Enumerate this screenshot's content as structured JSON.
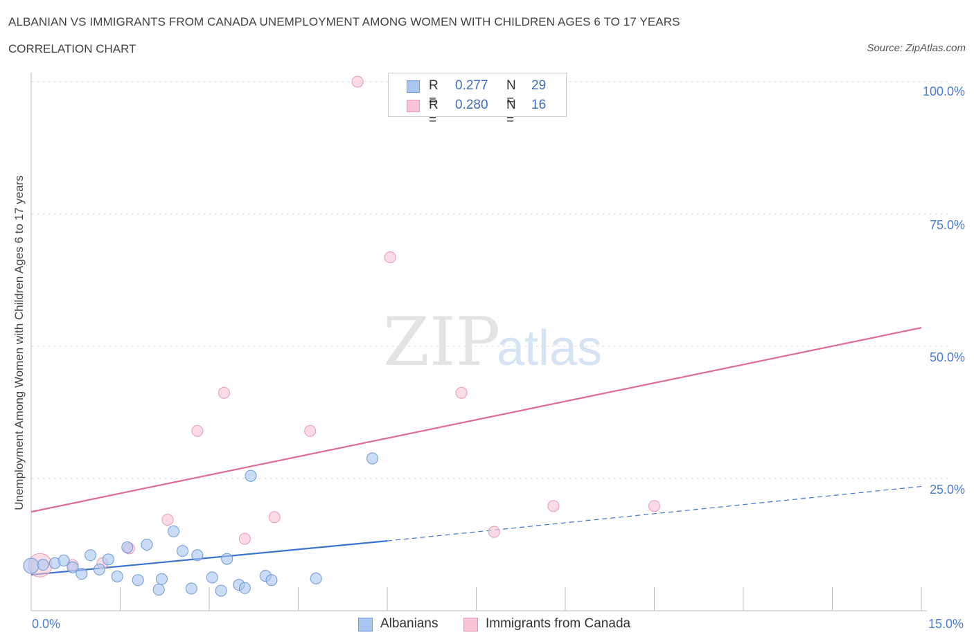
{
  "title": "ALBANIAN VS IMMIGRANTS FROM CANADA UNEMPLOYMENT AMONG WOMEN WITH CHILDREN AGES 6 TO 17 YEARS",
  "subtitle": "CORRELATION CHART",
  "source": "Source: ZipAtlas.com",
  "watermark": {
    "zip": "ZIP",
    "atlas": "atlas"
  },
  "legend_stats": [
    {
      "r_label": "R =",
      "r_value": "0.277",
      "n_label": "N =",
      "n_value": "29",
      "color": "#a9c6f0",
      "border": "#6d9de0"
    },
    {
      "r_label": "R =",
      "r_value": "0.280",
      "n_label": "N =",
      "n_value": "16",
      "color": "#f9c3d3",
      "border": "#e996b0"
    }
  ],
  "colors": {
    "albanians_fill": "#a9c6f0",
    "albanians_stroke": "#6b98d8",
    "albanians_line": "#3a74cc",
    "canada_fill": "#f9c3d3",
    "canada_stroke": "#e79ab3",
    "canada_line": "#e06b94",
    "tick_text": "#4a7ccf",
    "grid": "#dcdcdc"
  },
  "chart_data": {
    "type": "scatter",
    "title": "ALBANIAN VS IMMIGRANTS FROM CANADA UNEMPLOYMENT AMONG WOMEN WITH CHILDREN AGES 6 TO 17 YEARS",
    "xlabel": "",
    "ylabel": "Unemployment Among Women with Children Ages 6 to 17 years",
    "xlim": [
      0,
      15
    ],
    "ylim": [
      0,
      100
    ],
    "x_tick_labels": [
      "0.0%",
      "15.0%"
    ],
    "y_ticks": [
      25,
      50,
      75,
      100
    ],
    "y_tick_labels": [
      "25.0%",
      "50.0%",
      "75.0%",
      "100.0%"
    ],
    "grid": "horizontal dashed",
    "legend_position": "bottom",
    "series": [
      {
        "name": "Albanians",
        "points": [
          {
            "x": 0.0,
            "y": 8.5
          },
          {
            "x": 0.2,
            "y": 8.7
          },
          {
            "x": 0.4,
            "y": 9.0
          },
          {
            "x": 0.55,
            "y": 9.5
          },
          {
            "x": 0.7,
            "y": 8.2
          },
          {
            "x": 0.85,
            "y": 7.0
          },
          {
            "x": 1.0,
            "y": 10.5
          },
          {
            "x": 1.15,
            "y": 7.8
          },
          {
            "x": 1.3,
            "y": 9.7
          },
          {
            "x": 1.45,
            "y": 6.5
          },
          {
            "x": 1.62,
            "y": 12.0
          },
          {
            "x": 1.8,
            "y": 5.8
          },
          {
            "x": 1.95,
            "y": 12.5
          },
          {
            "x": 2.15,
            "y": 4.0
          },
          {
            "x": 2.2,
            "y": 6.0
          },
          {
            "x": 2.4,
            "y": 15.0
          },
          {
            "x": 2.55,
            "y": 11.3
          },
          {
            "x": 2.7,
            "y": 4.2
          },
          {
            "x": 2.8,
            "y": 10.5
          },
          {
            "x": 3.05,
            "y": 6.3
          },
          {
            "x": 3.2,
            "y": 3.8
          },
          {
            "x": 3.3,
            "y": 9.8
          },
          {
            "x": 3.5,
            "y": 4.9
          },
          {
            "x": 3.6,
            "y": 4.3
          },
          {
            "x": 3.7,
            "y": 25.5
          },
          {
            "x": 3.95,
            "y": 6.6
          },
          {
            "x": 4.05,
            "y": 5.8
          },
          {
            "x": 4.8,
            "y": 6.1
          },
          {
            "x": 5.75,
            "y": 28.8
          }
        ],
        "trend": {
          "x": [
            0.0,
            6.0
          ],
          "y": [
            6.8,
            13.2
          ]
        },
        "trend_extension": {
          "x": [
            6.0,
            15.0
          ],
          "y": [
            13.2,
            23.5
          ]
        }
      },
      {
        "name": "Immigrants from Canada",
        "points": [
          {
            "x": 0.15,
            "y": 8.6
          },
          {
            "x": 0.7,
            "y": 8.6
          },
          {
            "x": 1.2,
            "y": 9.0
          },
          {
            "x": 1.65,
            "y": 11.8
          },
          {
            "x": 2.3,
            "y": 17.2
          },
          {
            "x": 2.8,
            "y": 34.0
          },
          {
            "x": 3.25,
            "y": 41.2
          },
          {
            "x": 3.6,
            "y": 13.6
          },
          {
            "x": 4.1,
            "y": 17.7
          },
          {
            "x": 4.7,
            "y": 34.0
          },
          {
            "x": 5.5,
            "y": 100.0
          },
          {
            "x": 6.05,
            "y": 66.8
          },
          {
            "x": 7.25,
            "y": 41.2
          },
          {
            "x": 7.8,
            "y": 14.9
          },
          {
            "x": 8.8,
            "y": 19.8
          },
          {
            "x": 10.5,
            "y": 19.8
          }
        ],
        "trend": {
          "x": [
            0.0,
            15.0
          ],
          "y": [
            18.7,
            53.5
          ]
        }
      }
    ]
  }
}
